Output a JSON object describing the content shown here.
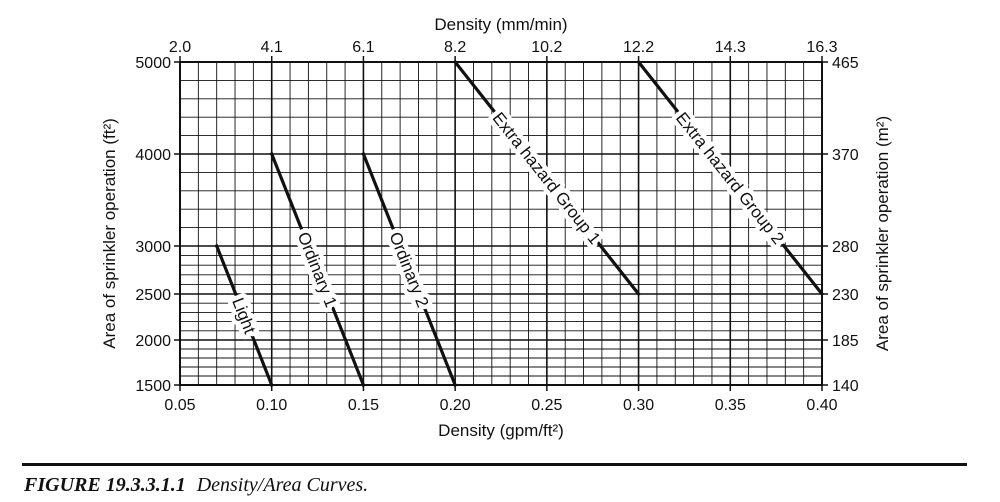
{
  "chart_data": {
    "type": "line",
    "xlabel": "Density (gpm/ft²)",
    "x2label": "Density (mm/min)",
    "ylabel": "Area of sprinkler operation (ft²)",
    "y2label": "Area of sprinkler operation (m²)",
    "xlim": [
      0.05,
      0.4
    ],
    "ylim": [
      1500,
      5000
    ],
    "x_ticks": [
      "0.05",
      "0.10",
      "0.15",
      "0.20",
      "0.25",
      "0.30",
      "0.35",
      "0.40"
    ],
    "x_tick_values": [
      0.05,
      0.1,
      0.15,
      0.2,
      0.25,
      0.3,
      0.35,
      0.4
    ],
    "x2_ticks": [
      "2.0",
      "4.1",
      "6.1",
      "8.2",
      "10.2",
      "12.2",
      "14.3",
      "16.3"
    ],
    "y_ticks": [
      "1500",
      "2000",
      "2500",
      "3000",
      "4000",
      "5000"
    ],
    "y_tick_values": [
      1500,
      2000,
      2500,
      3000,
      4000,
      5000
    ],
    "y2_ticks": [
      "140",
      "185",
      "230",
      "280",
      "370",
      "465"
    ],
    "grid": true,
    "series": [
      {
        "name": "Light",
        "x": [
          0.07,
          0.1
        ],
        "y": [
          3000,
          1500
        ]
      },
      {
        "name": "Ordinary 1",
        "x": [
          0.1,
          0.15
        ],
        "y": [
          4000,
          1500
        ]
      },
      {
        "name": "Ordinary 2",
        "x": [
          0.15,
          0.2
        ],
        "y": [
          4000,
          1500
        ]
      },
      {
        "name": "Extra hazard Group 1",
        "x": [
          0.2,
          0.3
        ],
        "y": [
          5000,
          2500
        ]
      },
      {
        "name": "Extra hazard Group 2",
        "x": [
          0.3,
          0.4
        ],
        "y": [
          5000,
          2500
        ]
      }
    ]
  },
  "caption": {
    "number": "FIGURE 19.3.3.1.1",
    "text": "Density/Area Curves."
  }
}
